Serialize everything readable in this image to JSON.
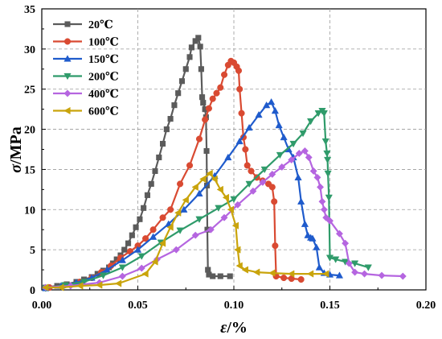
{
  "chart_data": {
    "type": "line",
    "xlabel_symbol": "ε",
    "xlabel_unit": "/%",
    "ylabel_symbol": "σ",
    "ylabel_unit": "/MPa",
    "xlim": [
      0.0,
      0.2
    ],
    "ylim": [
      0,
      35
    ],
    "x_ticks": [
      "0.00",
      "0.05",
      "0.10",
      "0.15",
      "0.20"
    ],
    "y_ticks": [
      "0",
      "5",
      "10",
      "15",
      "20",
      "25",
      "30",
      "35"
    ],
    "grid": true,
    "legend_position": "top-left",
    "series": [
      {
        "name": "20℃",
        "color": "#5b5b5b",
        "marker": "square",
        "points": [
          [
            0.002,
            0.3
          ],
          [
            0.008,
            0.5
          ],
          [
            0.013,
            0.7
          ],
          [
            0.018,
            1.0
          ],
          [
            0.022,
            1.3
          ],
          [
            0.026,
            1.6
          ],
          [
            0.029,
            2.0
          ],
          [
            0.032,
            2.4
          ],
          [
            0.035,
            2.8
          ],
          [
            0.037,
            3.3
          ],
          [
            0.039,
            3.8
          ],
          [
            0.041,
            4.3
          ],
          [
            0.043,
            5.0
          ],
          [
            0.045,
            5.8
          ],
          [
            0.047,
            6.8
          ],
          [
            0.049,
            7.8
          ],
          [
            0.051,
            8.8
          ],
          [
            0.053,
            10.2
          ],
          [
            0.055,
            11.8
          ],
          [
            0.057,
            13.2
          ],
          [
            0.059,
            14.8
          ],
          [
            0.061,
            16.5
          ],
          [
            0.063,
            18.2
          ],
          [
            0.065,
            20.0
          ],
          [
            0.067,
            21.3
          ],
          [
            0.069,
            23.0
          ],
          [
            0.071,
            24.5
          ],
          [
            0.073,
            26.0
          ],
          [
            0.075,
            27.5
          ],
          [
            0.077,
            29.0
          ],
          [
            0.078,
            30.2
          ],
          [
            0.08,
            31.0
          ],
          [
            0.0815,
            31.4
          ],
          [
            0.0825,
            30.3
          ],
          [
            0.083,
            27.5
          ],
          [
            0.0835,
            24.0
          ],
          [
            0.084,
            23.3
          ],
          [
            0.085,
            22.5
          ],
          [
            0.0855,
            21.5
          ],
          [
            0.0858,
            17.3
          ],
          [
            0.086,
            13.0
          ],
          [
            0.0862,
            7.5
          ],
          [
            0.0865,
            2.5
          ],
          [
            0.087,
            1.9
          ],
          [
            0.089,
            1.7
          ],
          [
            0.093,
            1.7
          ],
          [
            0.098,
            1.7
          ]
        ]
      },
      {
        "name": "100℃",
        "color": "#d94a32",
        "marker": "circle",
        "points": [
          [
            0.004,
            0.3
          ],
          [
            0.012,
            0.6
          ],
          [
            0.02,
            1.0
          ],
          [
            0.026,
            1.5
          ],
          [
            0.031,
            2.2
          ],
          [
            0.036,
            3.0
          ],
          [
            0.041,
            4.0
          ],
          [
            0.046,
            4.8
          ],
          [
            0.05,
            5.5
          ],
          [
            0.054,
            6.4
          ],
          [
            0.058,
            7.5
          ],
          [
            0.063,
            9.0
          ],
          [
            0.067,
            10.0
          ],
          [
            0.072,
            13.2
          ],
          [
            0.077,
            15.5
          ],
          [
            0.082,
            18.8
          ],
          [
            0.085,
            21.2
          ],
          [
            0.087,
            22.6
          ],
          [
            0.089,
            23.8
          ],
          [
            0.091,
            24.5
          ],
          [
            0.093,
            25.2
          ],
          [
            0.095,
            26.8
          ],
          [
            0.097,
            28.0
          ],
          [
            0.0985,
            28.5
          ],
          [
            0.1,
            28.3
          ],
          [
            0.1015,
            27.8
          ],
          [
            0.1025,
            27.3
          ],
          [
            0.103,
            25.0
          ],
          [
            0.104,
            22.0
          ],
          [
            0.105,
            19.0
          ],
          [
            0.106,
            17.5
          ],
          [
            0.107,
            15.5
          ],
          [
            0.109,
            14.8
          ],
          [
            0.112,
            14.0
          ],
          [
            0.115,
            13.6
          ],
          [
            0.118,
            13.2
          ],
          [
            0.12,
            12.8
          ],
          [
            0.121,
            11.0
          ],
          [
            0.1215,
            5.5
          ],
          [
            0.122,
            1.7
          ],
          [
            0.126,
            1.5
          ],
          [
            0.13,
            1.4
          ],
          [
            0.135,
            1.3
          ]
        ]
      },
      {
        "name": "150℃",
        "color": "#1f5bcc",
        "marker": "triangle-up",
        "points": [
          [
            0.002,
            0.2
          ],
          [
            0.01,
            0.5
          ],
          [
            0.018,
            0.9
          ],
          [
            0.026,
            1.5
          ],
          [
            0.034,
            2.5
          ],
          [
            0.042,
            3.7
          ],
          [
            0.05,
            5.0
          ],
          [
            0.058,
            6.6
          ],
          [
            0.066,
            8.2
          ],
          [
            0.074,
            10.0
          ],
          [
            0.082,
            12.0
          ],
          [
            0.09,
            14.2
          ],
          [
            0.097,
            16.5
          ],
          [
            0.103,
            18.5
          ],
          [
            0.108,
            20.2
          ],
          [
            0.113,
            21.8
          ],
          [
            0.117,
            23.0
          ],
          [
            0.1195,
            23.4
          ],
          [
            0.1215,
            22.3
          ],
          [
            0.1235,
            20.5
          ],
          [
            0.126,
            19.0
          ],
          [
            0.1285,
            17.5
          ],
          [
            0.131,
            16.5
          ],
          [
            0.1335,
            14.0
          ],
          [
            0.135,
            11.0
          ],
          [
            0.137,
            8.2
          ],
          [
            0.1385,
            6.8
          ],
          [
            0.14,
            6.5
          ],
          [
            0.141,
            6.4
          ],
          [
            0.143,
            5.3
          ],
          [
            0.1445,
            2.8
          ],
          [
            0.147,
            2.1
          ],
          [
            0.15,
            1.9
          ],
          [
            0.155,
            1.8
          ]
        ]
      },
      {
        "name": "200℃",
        "color": "#2f9b6a",
        "marker": "triangle-down",
        "points": [
          [
            0.002,
            0.2
          ],
          [
            0.012,
            0.6
          ],
          [
            0.022,
            1.0
          ],
          [
            0.032,
            1.8
          ],
          [
            0.042,
            2.8
          ],
          [
            0.052,
            4.2
          ],
          [
            0.062,
            5.9
          ],
          [
            0.072,
            7.4
          ],
          [
            0.082,
            8.8
          ],
          [
            0.092,
            10.2
          ],
          [
            0.1,
            11.3
          ],
          [
            0.108,
            13.2
          ],
          [
            0.116,
            15.0
          ],
          [
            0.124,
            16.8
          ],
          [
            0.131,
            18.2
          ],
          [
            0.136,
            19.5
          ],
          [
            0.14,
            21.0
          ],
          [
            0.144,
            22.0
          ],
          [
            0.146,
            22.3
          ],
          [
            0.147,
            22.0
          ],
          [
            0.1478,
            18.5
          ],
          [
            0.1485,
            17.0
          ],
          [
            0.1488,
            16.2
          ],
          [
            0.149,
            14.5
          ],
          [
            0.1495,
            11.5
          ],
          [
            0.15,
            4.0
          ],
          [
            0.153,
            3.8
          ],
          [
            0.158,
            3.5
          ],
          [
            0.163,
            3.3
          ],
          [
            0.17,
            2.8
          ]
        ]
      },
      {
        "name": "400℃",
        "color": "#b565e0",
        "marker": "diamond",
        "points": [
          [
            0.002,
            0.3
          ],
          [
            0.015,
            0.5
          ],
          [
            0.03,
            0.9
          ],
          [
            0.042,
            1.7
          ],
          [
            0.052,
            2.7
          ],
          [
            0.06,
            3.8
          ],
          [
            0.07,
            5.0
          ],
          [
            0.08,
            6.8
          ],
          [
            0.088,
            7.5
          ],
          [
            0.095,
            9.0
          ],
          [
            0.102,
            10.6
          ],
          [
            0.11,
            12.3
          ],
          [
            0.115,
            13.4
          ],
          [
            0.12,
            14.4
          ],
          [
            0.125,
            15.3
          ],
          [
            0.13,
            16.2
          ],
          [
            0.134,
            17.0
          ],
          [
            0.137,
            17.3
          ],
          [
            0.139,
            16.5
          ],
          [
            0.1415,
            14.8
          ],
          [
            0.1435,
            14.0
          ],
          [
            0.145,
            12.8
          ],
          [
            0.146,
            11.0
          ],
          [
            0.147,
            10.0
          ],
          [
            0.148,
            9.0
          ],
          [
            0.15,
            8.6
          ],
          [
            0.155,
            7.0
          ],
          [
            0.158,
            5.8
          ],
          [
            0.16,
            3.3
          ],
          [
            0.163,
            2.2
          ],
          [
            0.168,
            2.0
          ],
          [
            0.177,
            1.8
          ],
          [
            0.188,
            1.7
          ]
        ]
      },
      {
        "name": "600℃",
        "color": "#c9a40c",
        "marker": "triangle-left",
        "points": [
          [
            0.002,
            0.3
          ],
          [
            0.01,
            0.3
          ],
          [
            0.02,
            0.5
          ],
          [
            0.03,
            0.6
          ],
          [
            0.04,
            0.8
          ],
          [
            0.054,
            2.0
          ],
          [
            0.059,
            3.5
          ],
          [
            0.063,
            5.8
          ],
          [
            0.067,
            7.8
          ],
          [
            0.071,
            9.6
          ],
          [
            0.075,
            11.2
          ],
          [
            0.08,
            12.8
          ],
          [
            0.084,
            13.8
          ],
          [
            0.0875,
            14.5
          ],
          [
            0.09,
            13.8
          ],
          [
            0.093,
            12.5
          ],
          [
            0.096,
            11.5
          ],
          [
            0.0985,
            10.0
          ],
          [
            0.101,
            8.0
          ],
          [
            0.102,
            5.0
          ],
          [
            0.103,
            3.0
          ],
          [
            0.106,
            2.5
          ],
          [
            0.112,
            2.2
          ],
          [
            0.12,
            2.1
          ],
          [
            0.13,
            2.0
          ],
          [
            0.14,
            2.0
          ],
          [
            0.148,
            2.0
          ]
        ]
      }
    ]
  }
}
